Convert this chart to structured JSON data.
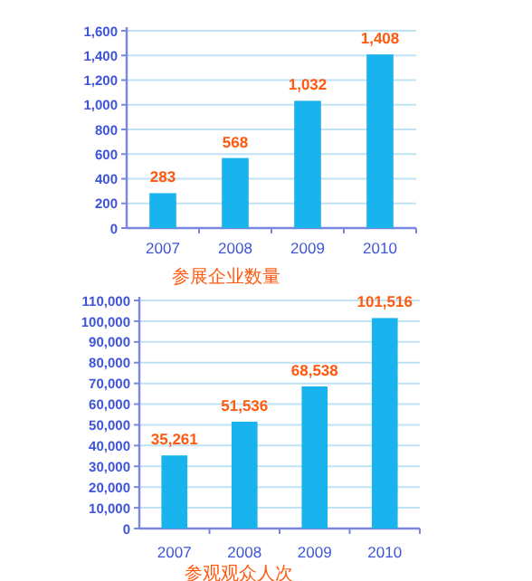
{
  "chart_data": [
    {
      "type": "bar",
      "xlabel": "参展企业数量",
      "categories": [
        "2007",
        "2008",
        "2009",
        "2010"
      ],
      "values": [
        283,
        568,
        1032,
        1408
      ],
      "value_labels": [
        "283",
        "568",
        "1,032",
        "1,408"
      ],
      "color": "#19b4ee",
      "grid": "y",
      "ylim": [
        0,
        1600
      ],
      "yticks": [
        0,
        200,
        400,
        600,
        800,
        {
          "value": 1000,
          "label": "1,000"
        },
        {
          "value": 1200,
          "label": "1,200"
        },
        {
          "value": 1400,
          "label": "1,400"
        },
        {
          "value": 1600,
          "label": "1,600"
        }
      ]
    },
    {
      "type": "bar",
      "xlabel": "参观观众人次",
      "categories": [
        "2007",
        "2008",
        "2009",
        "2010"
      ],
      "values": [
        35261,
        51536,
        68538,
        101516
      ],
      "value_labels": [
        "35,261",
        "51,536",
        "68,538",
        "101,516"
      ],
      "color": "#19b4ee",
      "grid": "y",
      "ylim": [
        0,
        110000
      ],
      "yticks": [
        0,
        {
          "value": 10000,
          "label": "10,000"
        },
        {
          "value": 20000,
          "label": "20,000"
        },
        {
          "value": 30000,
          "label": "30,000"
        },
        {
          "value": 40000,
          "label": "40,000"
        },
        {
          "value": 50000,
          "label": "50,000"
        },
        {
          "value": 60000,
          "label": "60,000"
        },
        {
          "value": 70000,
          "label": "70,000"
        },
        {
          "value": 80000,
          "label": "80,000"
        },
        {
          "value": 90000,
          "label": "90,000"
        },
        {
          "value": 100000,
          "label": "100,000"
        },
        {
          "value": 110000,
          "label": "110,000"
        }
      ]
    }
  ]
}
